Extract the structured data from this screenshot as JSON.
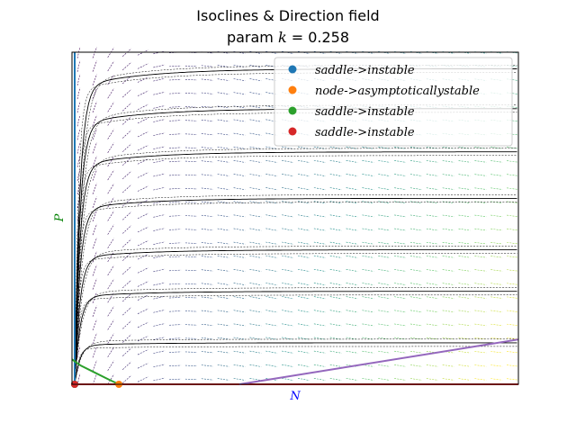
{
  "title": {
    "line1": "Isoclines & Direction field",
    "line2_prefix": "param ",
    "line2_symbol": "k",
    "line2_suffix": " = 0.258"
  },
  "colors": {
    "fixed_points": [
      "#1f77b4",
      "#ff7f0e",
      "#2ca02c",
      "#d62728"
    ],
    "isocline_purple": "#9467bd",
    "xlabel": "#0000ff",
    "ylabel": "#008000",
    "trajectory": "#000000"
  },
  "chart_data": {
    "type": "scatter",
    "subtype": "phase portrait with direction field",
    "xlabel": "N",
    "ylabel": "P",
    "xlim": [
      0,
      100
    ],
    "ylim": [
      0,
      100
    ],
    "tick_labels_shown": false,
    "grid": false,
    "legend_position": "top-right",
    "legend": [
      {
        "label": "saddle->instable",
        "color": "#1f77b4"
      },
      {
        "label": "node->asymptoticallystable",
        "color": "#ff7f0e"
      },
      {
        "label": "saddle->instable",
        "color": "#2ca02c"
      },
      {
        "label": "saddle->instable",
        "color": "#d62728"
      }
    ],
    "fixed_points": [
      {
        "label": "saddle->instable",
        "x": 0.6,
        "y": 0,
        "color": "#1f77b4"
      },
      {
        "label": "node->asymptoticallystable",
        "x": 10.5,
        "y": 0,
        "color": "#ff7f0e"
      },
      {
        "label": "saddle->instable",
        "x": 0.6,
        "y": 0,
        "color": "#2ca02c"
      },
      {
        "label": "saddle->instable",
        "x": 0.6,
        "y": 0,
        "color": "#d62728"
      }
    ],
    "isoclines": [
      {
        "color": "#1f77b4",
        "points": [
          [
            0.6,
            0
          ],
          [
            0.6,
            100
          ]
        ]
      },
      {
        "color": "#d62728",
        "points": [
          [
            0,
            0
          ],
          [
            100,
            0
          ]
        ]
      },
      {
        "color": "#2ca02c",
        "points": [
          [
            0,
            7.5
          ],
          [
            2,
            5.6
          ],
          [
            5,
            3.6
          ],
          [
            8,
            1.6
          ],
          [
            10.5,
            0
          ]
        ]
      },
      {
        "color": "#9467bd",
        "points": [
          [
            37.5,
            0
          ],
          [
            100,
            13.5
          ]
        ]
      }
    ],
    "trajectory_plateaus": [
      12.5,
      28,
      40.5,
      56,
      70,
      83,
      95
    ]
  }
}
